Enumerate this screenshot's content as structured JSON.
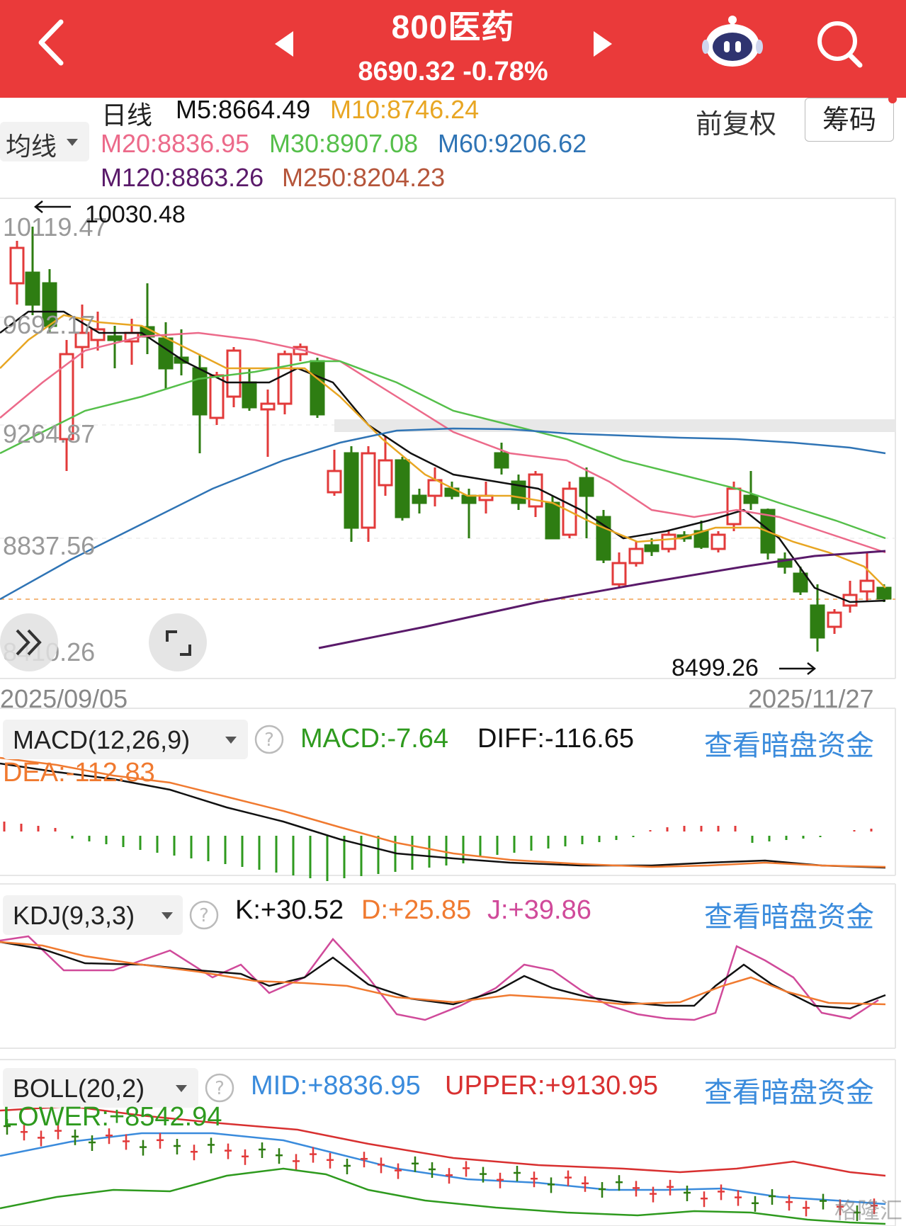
{
  "header": {
    "title": "800医药",
    "price": "8690.32",
    "change": "-0.78%",
    "back_icon": "chevron-left-icon",
    "prev_icon": "triangle-left-icon",
    "next_icon": "triangle-right-icon",
    "robot_icon": "robot-icon",
    "search_icon": "search-icon"
  },
  "toolbar": {
    "period": "日线",
    "ma_selector": "均线",
    "adjust": "前复权",
    "chips": "筹码",
    "ma": [
      {
        "label": "M5:8664.49",
        "color": "#111111"
      },
      {
        "label": "M10:8746.24",
        "color": "#e8a623"
      },
      {
        "label": "M20:8836.95",
        "color": "#ec6a8a"
      },
      {
        "label": "M30:8907.08",
        "color": "#55bf4a"
      },
      {
        "label": "M60:9206.62",
        "color": "#2f74b5"
      },
      {
        "label": "M120:8863.26",
        "color": "#5a1a6a"
      },
      {
        "label": "M250:8204.23",
        "color": "#b5553a"
      }
    ]
  },
  "price_chart": {
    "y_ticks": [
      "10119.47",
      "9692.17",
      "9264.87",
      "8837.56",
      "8410.26"
    ],
    "high_label": "10030.48",
    "low_label": "8499.26",
    "date_start": "2025/09/05",
    "date_end": "2025/11/27",
    "up_color": "#e23a3a",
    "down_color": "#2e7d12"
  },
  "macd": {
    "selector": "MACD(12,26,9)",
    "macd": "MACD:-7.64",
    "diff": "DIFF:-116.65",
    "dea": "DEA:-112.83",
    "link": "查看暗盘资金"
  },
  "kdj": {
    "selector": "KDJ(9,3,3)",
    "k": "K:+30.52",
    "d": "D:+25.85",
    "j": "J:+39.86",
    "link": "查看暗盘资金"
  },
  "boll": {
    "selector": "BOLL(20,2)",
    "mid": "MID:+8836.95",
    "upper": "UPPER:+9130.95",
    "lower": "LOWER:+8542.94",
    "link": "查看暗盘资金"
  },
  "watermark": "格隆汇"
}
